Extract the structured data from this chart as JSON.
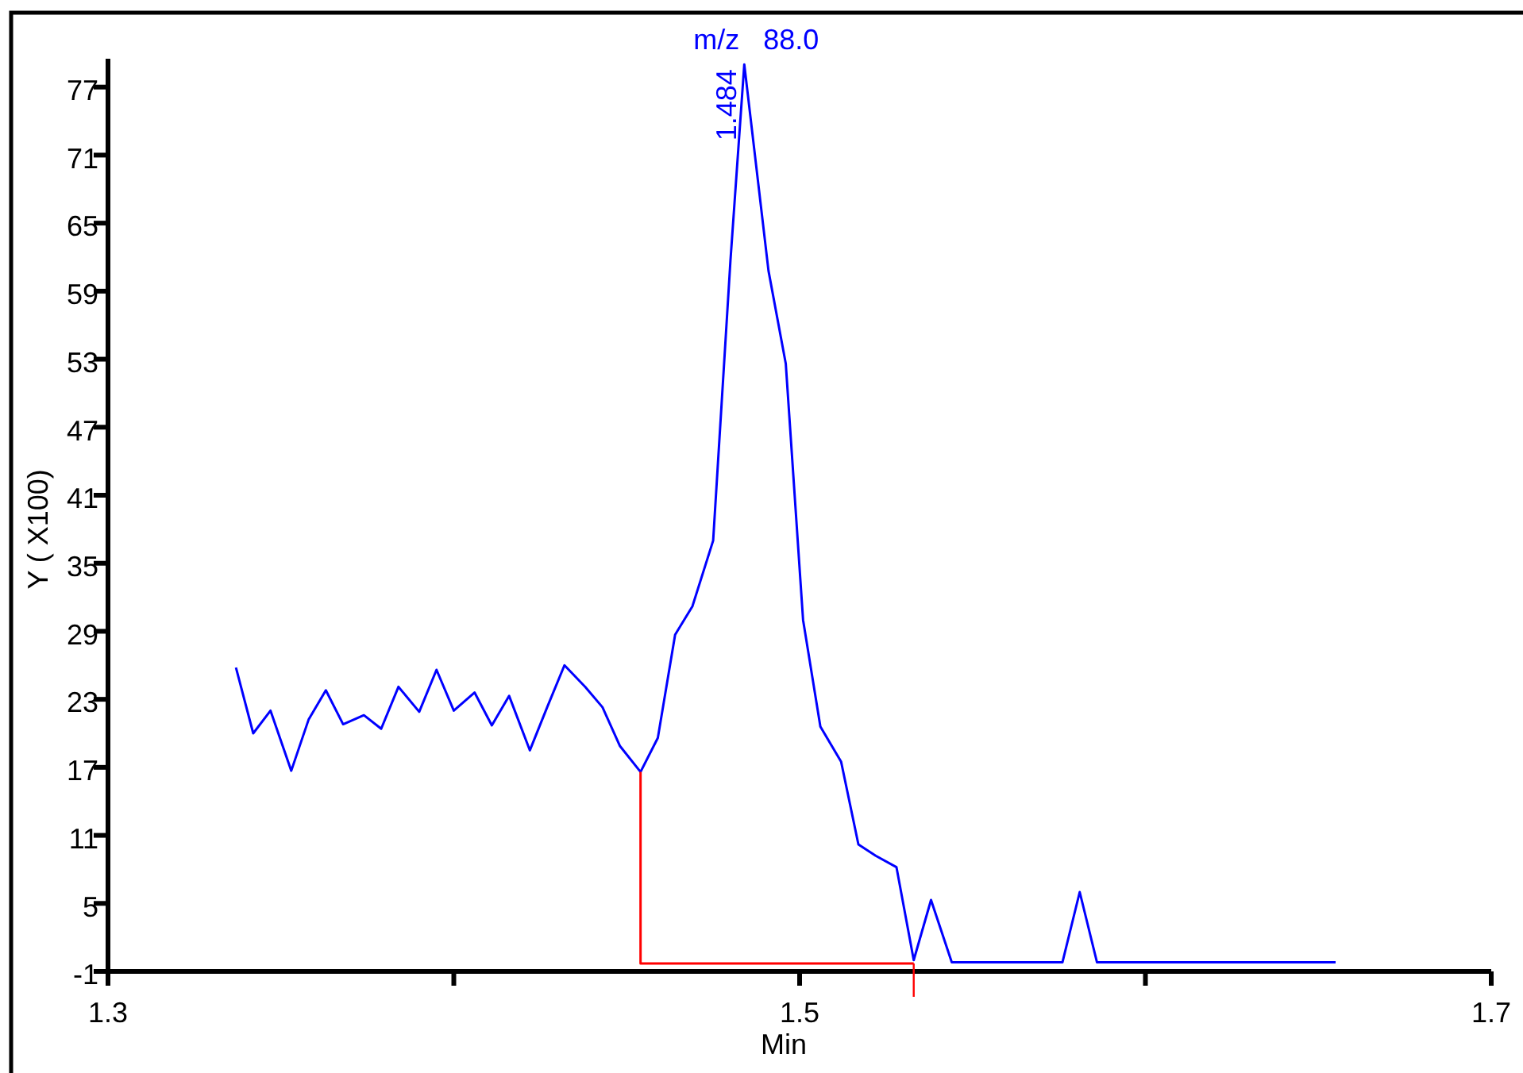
{
  "chart_data": {
    "type": "line",
    "xlabel": "Min",
    "ylabel": "Y ( X100)",
    "annotations": [
      "m/z   88.0",
      {
        "text": "1.484",
        "x": 1.484,
        "y": 79
      }
    ],
    "xlim": [
      1.3,
      1.7
    ],
    "xticks": [
      1.3,
      {
        "value": 1.4,
        "label": null
      },
      1.5,
      {
        "value": 1.6,
        "label": null
      },
      1.7
    ],
    "ylim": [
      -1,
      79.5
    ],
    "yticks": [
      -1,
      5,
      11,
      17,
      23,
      29,
      35,
      41,
      47,
      53,
      59,
      65,
      71,
      77
    ],
    "marker": "none",
    "line_style": "solid",
    "series": [
      {
        "color": "#0000ff",
        "x": [
          1.337,
          1.342,
          1.347,
          1.353,
          1.358,
          1.363,
          1.368,
          1.374,
          1.379,
          1.384,
          1.39,
          1.395,
          1.4,
          1.406,
          1.411,
          1.416,
          1.422,
          1.427,
          1.432,
          1.438,
          1.443,
          1.448,
          1.454,
          1.459,
          1.464,
          1.469,
          1.475,
          1.48,
          1.484,
          1.491,
          1.496,
          1.501,
          1.506,
          1.512,
          1.517,
          1.522,
          1.528,
          1.533,
          1.538,
          1.544,
          1.576,
          1.581,
          1.586,
          1.655
        ],
        "values": [
          25.8,
          20.0,
          22.0,
          16.7,
          21.2,
          23.8,
          20.8,
          21.6,
          20.4,
          24.1,
          21.9,
          25.6,
          22.0,
          23.6,
          20.7,
          23.3,
          18.5,
          22.3,
          26.0,
          24.1,
          22.3,
          18.9,
          16.6,
          19.6,
          28.7,
          31.2,
          37.0,
          61.7,
          79.0,
          60.8,
          52.6,
          30.0,
          20.6,
          17.5,
          10.2,
          9.2,
          8.2,
          0.0,
          5.3,
          -0.2,
          -0.2,
          6.0,
          -0.2,
          -0.2
        ]
      },
      {
        "color": "#ff0000",
        "x": [
          1.454,
          1.454,
          1.533
        ],
        "values": [
          16.6,
          -0.3,
          -0.3
        ]
      }
    ]
  }
}
